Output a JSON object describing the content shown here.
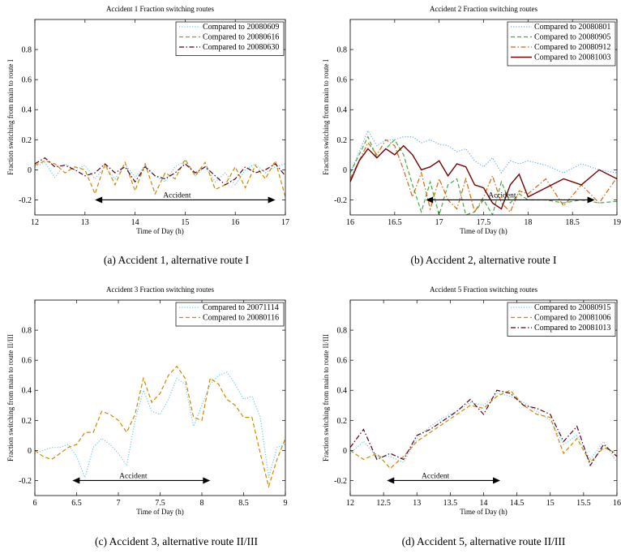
{
  "chart_data": [
    {
      "type": "line",
      "title": "Accident 1 Fraction switching routes",
      "xlabel": "Time of Day (h)",
      "ylabel": "Fraction switching from main to route I",
      "caption": "(a)  Accident 1, alternative route I",
      "xlim": [
        12,
        17
      ],
      "ylim": [
        -0.3,
        1.0
      ],
      "xticks": [
        "12",
        "13",
        "14",
        "15",
        "16",
        "17"
      ],
      "yticks": [
        "-0.2",
        "0",
        "0.2",
        "0.4",
        "0.6",
        "0.8"
      ],
      "legend_position": "top-right",
      "annotation": {
        "label": "Accident",
        "x_start": 13.2,
        "x_end": 16.8,
        "y": -0.2
      },
      "series": [
        {
          "name": "Compared to 20080609",
          "color": "#66ccee",
          "style": "dotted",
          "x": [
            12,
            12.2,
            12.4,
            12.6,
            12.8,
            13,
            13.2,
            13.4,
            13.6,
            13.8,
            14,
            14.2,
            14.4,
            14.6,
            14.8,
            15,
            15.2,
            15.4,
            15.6,
            15.8,
            16,
            16.2,
            16.4,
            16.6,
            16.8,
            17
          ],
          "y": [
            0.02,
            0.05,
            -0.05,
            0.04,
            0.0,
            0.03,
            -0.06,
            0.02,
            -0.06,
            0.04,
            -0.05,
            0.03,
            -0.04,
            -0.08,
            0.02,
            0.06,
            -0.04,
            0.02,
            -0.08,
            -0.02,
            -0.1,
            0.0,
            0.04,
            -0.02,
            0.02,
            0.04
          ]
        },
        {
          "name": "Compared to 20080616",
          "color": "#cc8800",
          "style": "dashed",
          "x": [
            12,
            12.2,
            12.4,
            12.6,
            12.8,
            13,
            13.2,
            13.4,
            13.6,
            13.8,
            14,
            14.2,
            14.4,
            14.6,
            14.8,
            15,
            15.2,
            15.4,
            15.6,
            15.8,
            16,
            16.2,
            16.4,
            16.6,
            16.8,
            17
          ],
          "y": [
            0.03,
            0.06,
            0.04,
            -0.02,
            0.02,
            0.0,
            -0.16,
            0.04,
            -0.1,
            0.05,
            -0.14,
            0.04,
            -0.16,
            -0.02,
            -0.06,
            0.07,
            -0.04,
            0.05,
            -0.13,
            -0.1,
            0.02,
            -0.12,
            0.03,
            -0.06,
            0.06,
            -0.18
          ]
        },
        {
          "name": "Compared to 20080630",
          "color": "#550022",
          "style": "dashdot",
          "x": [
            12,
            12.2,
            12.4,
            12.6,
            12.8,
            13,
            13.2,
            13.4,
            13.6,
            13.8,
            14,
            14.2,
            14.4,
            14.6,
            14.8,
            15,
            15.2,
            15.4,
            15.6,
            15.8,
            16,
            16.2,
            16.4,
            16.6,
            16.8,
            17
          ],
          "y": [
            0.04,
            0.08,
            0.02,
            0.03,
            0.0,
            -0.04,
            -0.02,
            0.04,
            -0.02,
            0.02,
            -0.08,
            0.02,
            -0.04,
            -0.06,
            -0.02,
            0.04,
            -0.02,
            0.02,
            -0.04,
            -0.1,
            -0.06,
            0.02,
            -0.02,
            0.0,
            0.04,
            -0.04
          ]
        }
      ]
    },
    {
      "type": "line",
      "title": "Accident 2 Fraction switching routes",
      "xlabel": "Time of Day (h)",
      "ylabel": "Fraction switching from main to route I",
      "caption": "(b)  Accident 2, alternative route I",
      "xlim": [
        16,
        19
      ],
      "ylim": [
        -0.3,
        1.0
      ],
      "xticks": [
        "16",
        "16.5",
        "17",
        "17.5",
        "18",
        "18.5",
        "19"
      ],
      "yticks": [
        "-0.2",
        "0",
        "0.2",
        "0.4",
        "0.6",
        "0.8"
      ],
      "legend_position": "top-right",
      "annotation": {
        "label": "Accident",
        "x_start": 16.85,
        "x_end": 18.75,
        "y": -0.2
      },
      "series": [
        {
          "name": "Compared to 20080801",
          "color": "#66aaff",
          "style": "dotted",
          "x": [
            16,
            16.1,
            16.2,
            16.3,
            16.4,
            16.5,
            16.6,
            16.7,
            16.8,
            16.9,
            17,
            17.1,
            17.2,
            17.3,
            17.4,
            17.5,
            17.6,
            17.7,
            17.8,
            17.9,
            18,
            18.2,
            18.4,
            18.6,
            18.8,
            19
          ],
          "y": [
            -0.02,
            0.12,
            0.26,
            0.16,
            0.2,
            0.2,
            0.22,
            0.22,
            0.18,
            0.2,
            0.17,
            0.16,
            0.12,
            0.14,
            0.06,
            0.02,
            0.08,
            -0.02,
            0.06,
            0.04,
            0.06,
            0.03,
            -0.02,
            0.04,
            0.0,
            -0.02
          ]
        },
        {
          "name": "Compared to 20080905",
          "color": "#44aa44",
          "style": "dashed",
          "x": [
            16,
            16.1,
            16.2,
            16.3,
            16.4,
            16.5,
            16.6,
            16.7,
            16.8,
            16.9,
            17,
            17.1,
            17.2,
            17.3,
            17.4,
            17.5,
            17.6,
            17.7,
            17.8,
            17.9,
            18,
            18.2,
            18.4,
            18.6,
            18.8,
            19
          ],
          "y": [
            -0.02,
            0.1,
            0.22,
            0.08,
            0.14,
            0.2,
            0.1,
            -0.1,
            -0.28,
            -0.08,
            -0.3,
            -0.1,
            -0.06,
            -0.3,
            -0.28,
            -0.2,
            -0.3,
            -0.08,
            -0.22,
            -0.16,
            -0.2,
            -0.2,
            -0.22,
            -0.2,
            -0.22,
            -0.21
          ]
        },
        {
          "name": "Compared to 20080912",
          "color": "#dd6600",
          "style": "dashdot",
          "x": [
            16,
            16.1,
            16.2,
            16.3,
            16.4,
            16.5,
            16.6,
            16.7,
            16.8,
            16.9,
            17,
            17.1,
            17.2,
            17.3,
            17.4,
            17.5,
            17.6,
            17.7,
            17.8,
            17.9,
            18,
            18.2,
            18.4,
            18.6,
            18.8,
            19
          ],
          "y": [
            -0.06,
            0.06,
            0.18,
            0.1,
            0.2,
            0.16,
            0.0,
            -0.18,
            -0.02,
            -0.26,
            -0.06,
            -0.2,
            -0.26,
            -0.06,
            -0.28,
            -0.18,
            -0.04,
            -0.22,
            -0.28,
            -0.14,
            -0.16,
            -0.06,
            -0.24,
            -0.1,
            -0.22,
            -0.05
          ]
        },
        {
          "name": "Compared to 20081003",
          "color": "#770000",
          "style": "solid",
          "x": [
            16,
            16.1,
            16.2,
            16.3,
            16.4,
            16.5,
            16.6,
            16.7,
            16.8,
            16.9,
            17,
            17.1,
            17.2,
            17.3,
            17.4,
            17.5,
            17.6,
            17.7,
            17.8,
            17.9,
            18,
            18.2,
            18.4,
            18.6,
            18.8,
            19
          ],
          "y": [
            -0.08,
            0.06,
            0.14,
            0.08,
            0.14,
            0.1,
            0.16,
            0.1,
            0.0,
            0.02,
            0.06,
            -0.04,
            0.04,
            0.02,
            -0.1,
            -0.12,
            -0.22,
            -0.26,
            -0.1,
            -0.03,
            -0.18,
            -0.12,
            -0.06,
            -0.1,
            0.0,
            -0.06
          ]
        }
      ]
    },
    {
      "type": "line",
      "title": "Accident 3 Fraction switching routes",
      "xlabel": "Time of Day (h)",
      "ylabel": "Fraction switching from main to route II/III",
      "caption": "(c)  Accident 3, alternative route II/III",
      "xlim": [
        6,
        9
      ],
      "ylim": [
        -0.3,
        1.0
      ],
      "xticks": [
        "6",
        "6.5",
        "7",
        "7.5",
        "8",
        "8.5",
        "9"
      ],
      "yticks": [
        "-0.2",
        "0",
        "0.2",
        "0.4",
        "0.6",
        "0.8"
      ],
      "legend_position": "top-right",
      "annotation": {
        "label": "Accident",
        "x_start": 6.45,
        "x_end": 8.1,
        "y": -0.2
      },
      "series": [
        {
          "name": "Compared to 20071114",
          "color": "#66ccee",
          "style": "dotted",
          "x": [
            6,
            6.1,
            6.2,
            6.3,
            6.4,
            6.5,
            6.6,
            6.7,
            6.8,
            6.9,
            7,
            7.1,
            7.2,
            7.3,
            7.4,
            7.5,
            7.6,
            7.7,
            7.8,
            7.9,
            8,
            8.1,
            8.2,
            8.3,
            8.4,
            8.5,
            8.6,
            8.7,
            8.8,
            8.9,
            9
          ],
          "y": [
            -0.02,
            0.0,
            0.02,
            0.02,
            0.04,
            -0.04,
            -0.18,
            0.02,
            0.08,
            0.04,
            -0.02,
            -0.1,
            0.2,
            0.4,
            0.26,
            0.24,
            0.34,
            0.48,
            0.44,
            0.16,
            0.3,
            0.44,
            0.5,
            0.52,
            0.44,
            0.34,
            0.36,
            0.22,
            -0.18,
            0.02,
            0.04
          ]
        },
        {
          "name": "Compared to 20080116",
          "color": "#cc8800",
          "style": "dashed",
          "x": [
            6,
            6.1,
            6.2,
            6.3,
            6.4,
            6.5,
            6.6,
            6.7,
            6.8,
            6.9,
            7,
            7.1,
            7.2,
            7.3,
            7.4,
            7.5,
            7.6,
            7.7,
            7.8,
            7.9,
            8,
            8.1,
            8.2,
            8.3,
            8.4,
            8.5,
            8.6,
            8.7,
            8.8,
            8.9,
            9
          ],
          "y": [
            0.0,
            -0.04,
            -0.06,
            -0.02,
            0.02,
            0.04,
            0.12,
            0.12,
            0.26,
            0.24,
            0.2,
            0.12,
            0.24,
            0.48,
            0.32,
            0.38,
            0.5,
            0.56,
            0.48,
            0.22,
            0.2,
            0.48,
            0.44,
            0.34,
            0.3,
            0.22,
            0.22,
            -0.02,
            -0.24,
            -0.06,
            0.08
          ]
        }
      ]
    },
    {
      "type": "line",
      "title": "Accident 5 Fraction switching routes",
      "xlabel": "Time of Day (h)",
      "ylabel": "Fraction switching from main to route II/III",
      "caption": "(d)  Accident 5, alternative route II/III",
      "xlim": [
        12,
        16
      ],
      "ylim": [
        -0.3,
        1.0
      ],
      "xticks": [
        "12",
        "12.5",
        "13",
        "13.5",
        "14",
        "14.5",
        "15",
        "15.5",
        "16"
      ],
      "yticks": [
        "-0.2",
        "0",
        "0.2",
        "0.4",
        "0.6",
        "0.8"
      ],
      "legend_position": "top-right",
      "annotation": {
        "label": "Accident",
        "x_start": 12.55,
        "x_end": 14.25,
        "y": -0.2
      },
      "series": [
        {
          "name": "Compared to 20080915",
          "color": "#66ccee",
          "style": "dotted",
          "x": [
            12,
            12.2,
            12.4,
            12.6,
            12.8,
            13,
            13.2,
            13.4,
            13.6,
            13.8,
            14,
            14.2,
            14.4,
            14.6,
            14.8,
            15,
            15.2,
            15.4,
            15.6,
            15.8,
            16
          ],
          "y": [
            -0.02,
            0.06,
            -0.04,
            -0.04,
            -0.08,
            0.08,
            0.16,
            0.22,
            0.26,
            0.32,
            0.3,
            0.38,
            0.36,
            0.32,
            0.26,
            0.2,
            0.04,
            0.1,
            -0.06,
            0.06,
            -0.08
          ]
        },
        {
          "name": "Compared to 20081006",
          "color": "#cc8800",
          "style": "dashed",
          "x": [
            12,
            12.2,
            12.4,
            12.6,
            12.8,
            13,
            13.2,
            13.4,
            13.6,
            13.8,
            14,
            14.2,
            14.4,
            14.6,
            14.8,
            15,
            15.2,
            15.4,
            15.6,
            15.8,
            16
          ],
          "y": [
            0.0,
            -0.06,
            -0.02,
            -0.12,
            -0.04,
            0.06,
            0.12,
            0.18,
            0.24,
            0.3,
            0.28,
            0.36,
            0.4,
            0.3,
            0.24,
            0.22,
            -0.02,
            0.08,
            -0.08,
            0.02,
            -0.02
          ]
        },
        {
          "name": "Compared to 20081013",
          "color": "#550022",
          "style": "dashdot",
          "x": [
            12,
            12.2,
            12.4,
            12.6,
            12.8,
            13,
            13.2,
            13.4,
            13.6,
            13.8,
            14,
            14.2,
            14.4,
            14.6,
            14.8,
            15,
            15.2,
            15.4,
            15.6,
            15.8,
            16
          ],
          "y": [
            0.02,
            0.14,
            -0.06,
            -0.02,
            -0.06,
            0.1,
            0.14,
            0.2,
            0.26,
            0.34,
            0.24,
            0.4,
            0.38,
            0.3,
            0.28,
            0.24,
            0.06,
            0.16,
            -0.1,
            0.04,
            -0.04
          ]
        }
      ]
    }
  ]
}
